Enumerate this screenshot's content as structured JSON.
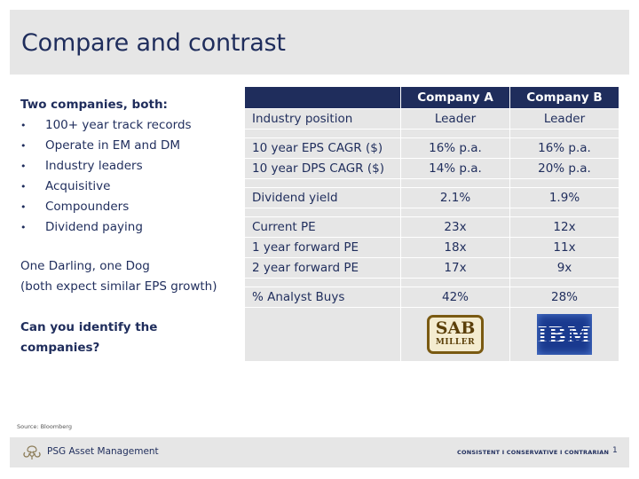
{
  "slide": {
    "title": "Compare and contrast",
    "intro": {
      "heading": "Two companies, both:",
      "bullet_char": "•",
      "bullets": [
        "100+ year track records",
        "Operate in EM and DM",
        "Industry leaders",
        "Acquisitive",
        "Compounders",
        "Dividend paying"
      ],
      "darling_line": "One Darling, one Dog",
      "growth_line": "(both expect similar EPS growth)",
      "question": "Can you identify the companies?"
    },
    "table": {
      "headers": [
        "",
        "Company A",
        "Company B"
      ],
      "rows": [
        {
          "label": "Industry position",
          "a": "Leader",
          "b": "Leader"
        },
        {
          "label": "10 year EPS CAGR ($)",
          "a": "16% p.a.",
          "b": "16% p.a."
        },
        {
          "label": "10 year DPS CAGR ($)",
          "a": "14% p.a.",
          "b": "20% p.a."
        },
        {
          "label": "Dividend yield",
          "a": "2.1%",
          "b": "1.9%"
        },
        {
          "label": "Current PE",
          "a": "23x",
          "b": "12x"
        },
        {
          "label": "1 year forward PE",
          "a": "18x",
          "b": "11x"
        },
        {
          "label": "2 year forward PE",
          "a": "17x",
          "b": "9x"
        },
        {
          "label": "% Analyst Buys",
          "a": "42%",
          "b": "28%"
        }
      ],
      "logos": {
        "company_a": {
          "line1": "SAB",
          "line2": "MILLER"
        },
        "company_b": {
          "text": "IBM"
        }
      }
    },
    "source": "Source: Bloomberg",
    "footer": {
      "brand": "PSG Asset Management",
      "tagline": "CONSISTENT I CONSERVATIVE I CONTRARIAN",
      "page_number": "1"
    }
  },
  "colors": {
    "navy": "#1f2d5c",
    "panel_grey": "#e6e6e6",
    "background": "#ffffff"
  }
}
